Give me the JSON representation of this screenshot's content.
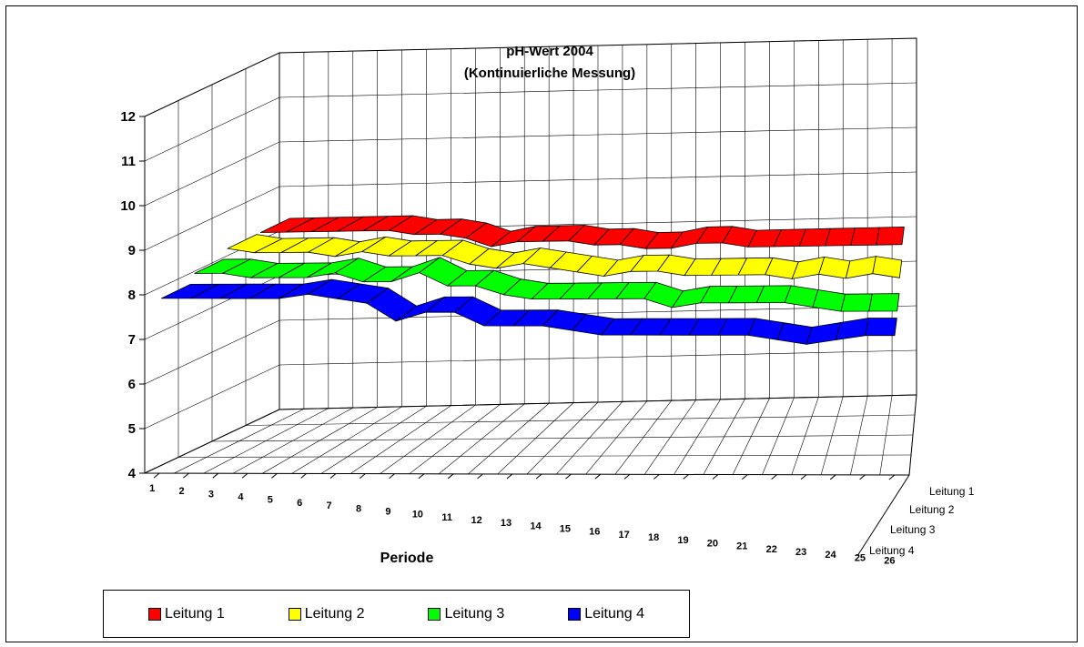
{
  "chart_data": {
    "type": "line",
    "title": "pH-Wert 2004",
    "subtitle": "(Kontinuierliche Messung)",
    "xlabel": "Periode",
    "ylabel": "",
    "ylim": [
      4,
      12
    ],
    "y_ticks": [
      "4",
      "5",
      "6",
      "7",
      "8",
      "9",
      "10",
      "11",
      "12"
    ],
    "categories": [
      "1",
      "2",
      "3",
      "4",
      "5",
      "6",
      "7",
      "8",
      "9",
      "10",
      "11",
      "12",
      "13",
      "14",
      "15",
      "16",
      "17",
      "18",
      "19",
      "20",
      "21",
      "22",
      "23",
      "24",
      "25",
      "26"
    ],
    "series_axis_labels": [
      "Leitung 1",
      "Leitung 2",
      "Leitung 3",
      "Leitung 4"
    ],
    "grid": true,
    "legend_placement": "bottom-left",
    "series": [
      {
        "name": "Leitung 1",
        "color": "#ff0000",
        "values": [
          8.3,
          8.3,
          8.3,
          8.3,
          8.3,
          8.3,
          8.2,
          8.2,
          8.1,
          7.9,
          8.0,
          8.0,
          8.0,
          7.9,
          7.9,
          7.8,
          7.8,
          7.9,
          7.9,
          7.8,
          7.8,
          7.8,
          7.8,
          7.8,
          7.8,
          7.8
        ]
      },
      {
        "name": "Leitung 2",
        "color": "#ffff00",
        "values": [
          8.3,
          8.2,
          8.2,
          8.2,
          8.1,
          8.2,
          8.1,
          8.1,
          8.1,
          7.9,
          7.8,
          7.9,
          7.8,
          7.7,
          7.6,
          7.7,
          7.7,
          7.6,
          7.6,
          7.6,
          7.6,
          7.5,
          7.6,
          7.5,
          7.6,
          7.5
        ]
      },
      {
        "name": "Leitung 3",
        "color": "#00ff00",
        "values": [
          8.1,
          8.1,
          8.0,
          8.0,
          8.0,
          8.1,
          7.9,
          7.9,
          8.1,
          7.8,
          7.8,
          7.6,
          7.5,
          7.5,
          7.5,
          7.5,
          7.5,
          7.3,
          7.4,
          7.4,
          7.4,
          7.4,
          7.3,
          7.2,
          7.2,
          7.2
        ]
      },
      {
        "name": "Leitung 4",
        "color": "#0000ff",
        "values": [
          7.9,
          7.9,
          7.9,
          7.9,
          7.9,
          8.0,
          7.9,
          7.8,
          7.4,
          7.6,
          7.6,
          7.3,
          7.3,
          7.3,
          7.2,
          7.1,
          7.1,
          7.1,
          7.1,
          7.1,
          7.1,
          7.0,
          6.9,
          7.0,
          7.1,
          7.1
        ]
      }
    ]
  }
}
